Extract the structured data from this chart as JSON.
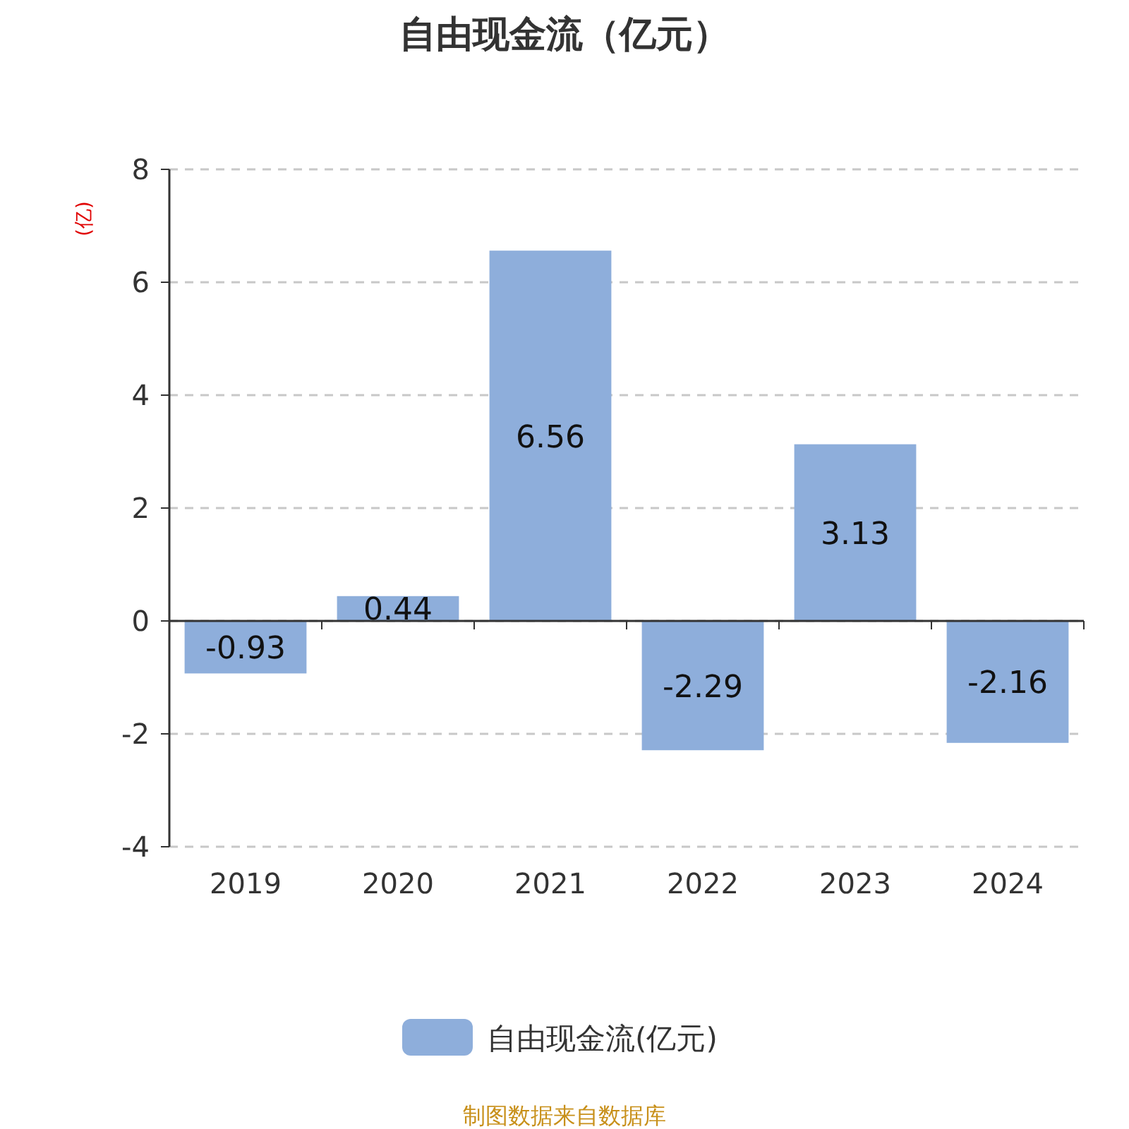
{
  "chart_data": {
    "type": "bar",
    "title": "自由现金流（亿元）",
    "ylabel": "(亿)",
    "categories": [
      "2019",
      "2020",
      "2021",
      "2022",
      "2023",
      "2024"
    ],
    "series": [
      {
        "name": "自由现金流(亿元)",
        "color": "#8eaedb",
        "values": [
          -0.93,
          0.44,
          6.56,
          -2.29,
          3.13,
          -2.16
        ]
      }
    ],
    "data_labels": true,
    "ylim": [
      -4,
      8
    ],
    "yticks": [
      -4,
      -2,
      0,
      2,
      4,
      6,
      8
    ],
    "grid": "y",
    "legend": "bottom",
    "annotations": [
      "制图数据来自数据库"
    ]
  }
}
